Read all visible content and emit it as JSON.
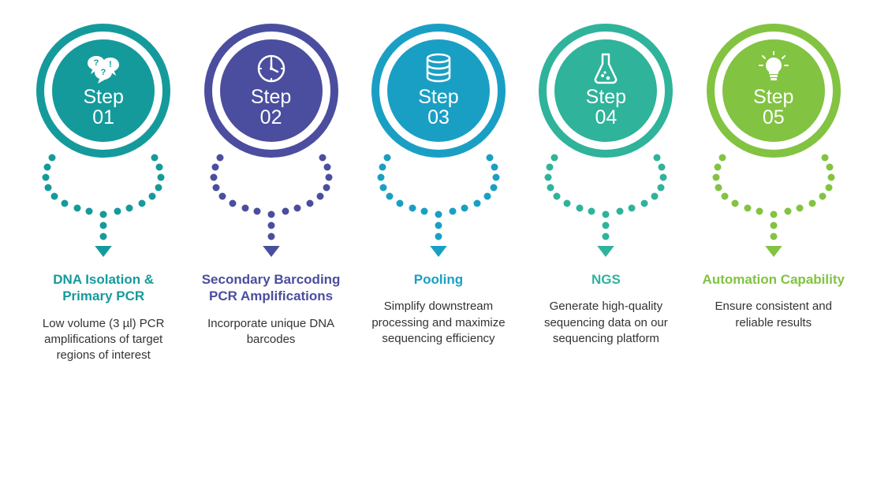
{
  "infographic": {
    "type": "process-steps",
    "background_color": "#ffffff",
    "step_word": "Step",
    "label_fontsize": 25,
    "title_fontsize": 17,
    "desc_fontsize": 15,
    "desc_color": "#333333",
    "circle_outer_diameter": 170,
    "circle_ring_gap": 10,
    "dot_radius": 4.5,
    "arrow_size": 14,
    "steps": [
      {
        "number": "01",
        "color": "#159a9c",
        "icon": "speech-bubbles",
        "title": "DNA Isolation & Primary PCR",
        "description": "Low volume (3 µl) PCR amplifications of target regions of interest"
      },
      {
        "number": "02",
        "color": "#4b4e9e",
        "icon": "clock",
        "title": "Secondary Barcoding PCR Amplifications",
        "description": "Incorporate unique DNA barcodes"
      },
      {
        "number": "03",
        "color": "#1a9fc4",
        "icon": "database",
        "title": "Pooling",
        "description": "Simplify downstream processing and maximize sequencing efficiency"
      },
      {
        "number": "04",
        "color": "#2fb39b",
        "icon": "flask",
        "title": "NGS",
        "description": "Generate high-quality sequencing data on our sequencing platform"
      },
      {
        "number": "05",
        "color": "#82c341",
        "icon": "lightbulb",
        "title": "Automation Capability",
        "description": "Ensure consistent and reliable results"
      }
    ]
  }
}
